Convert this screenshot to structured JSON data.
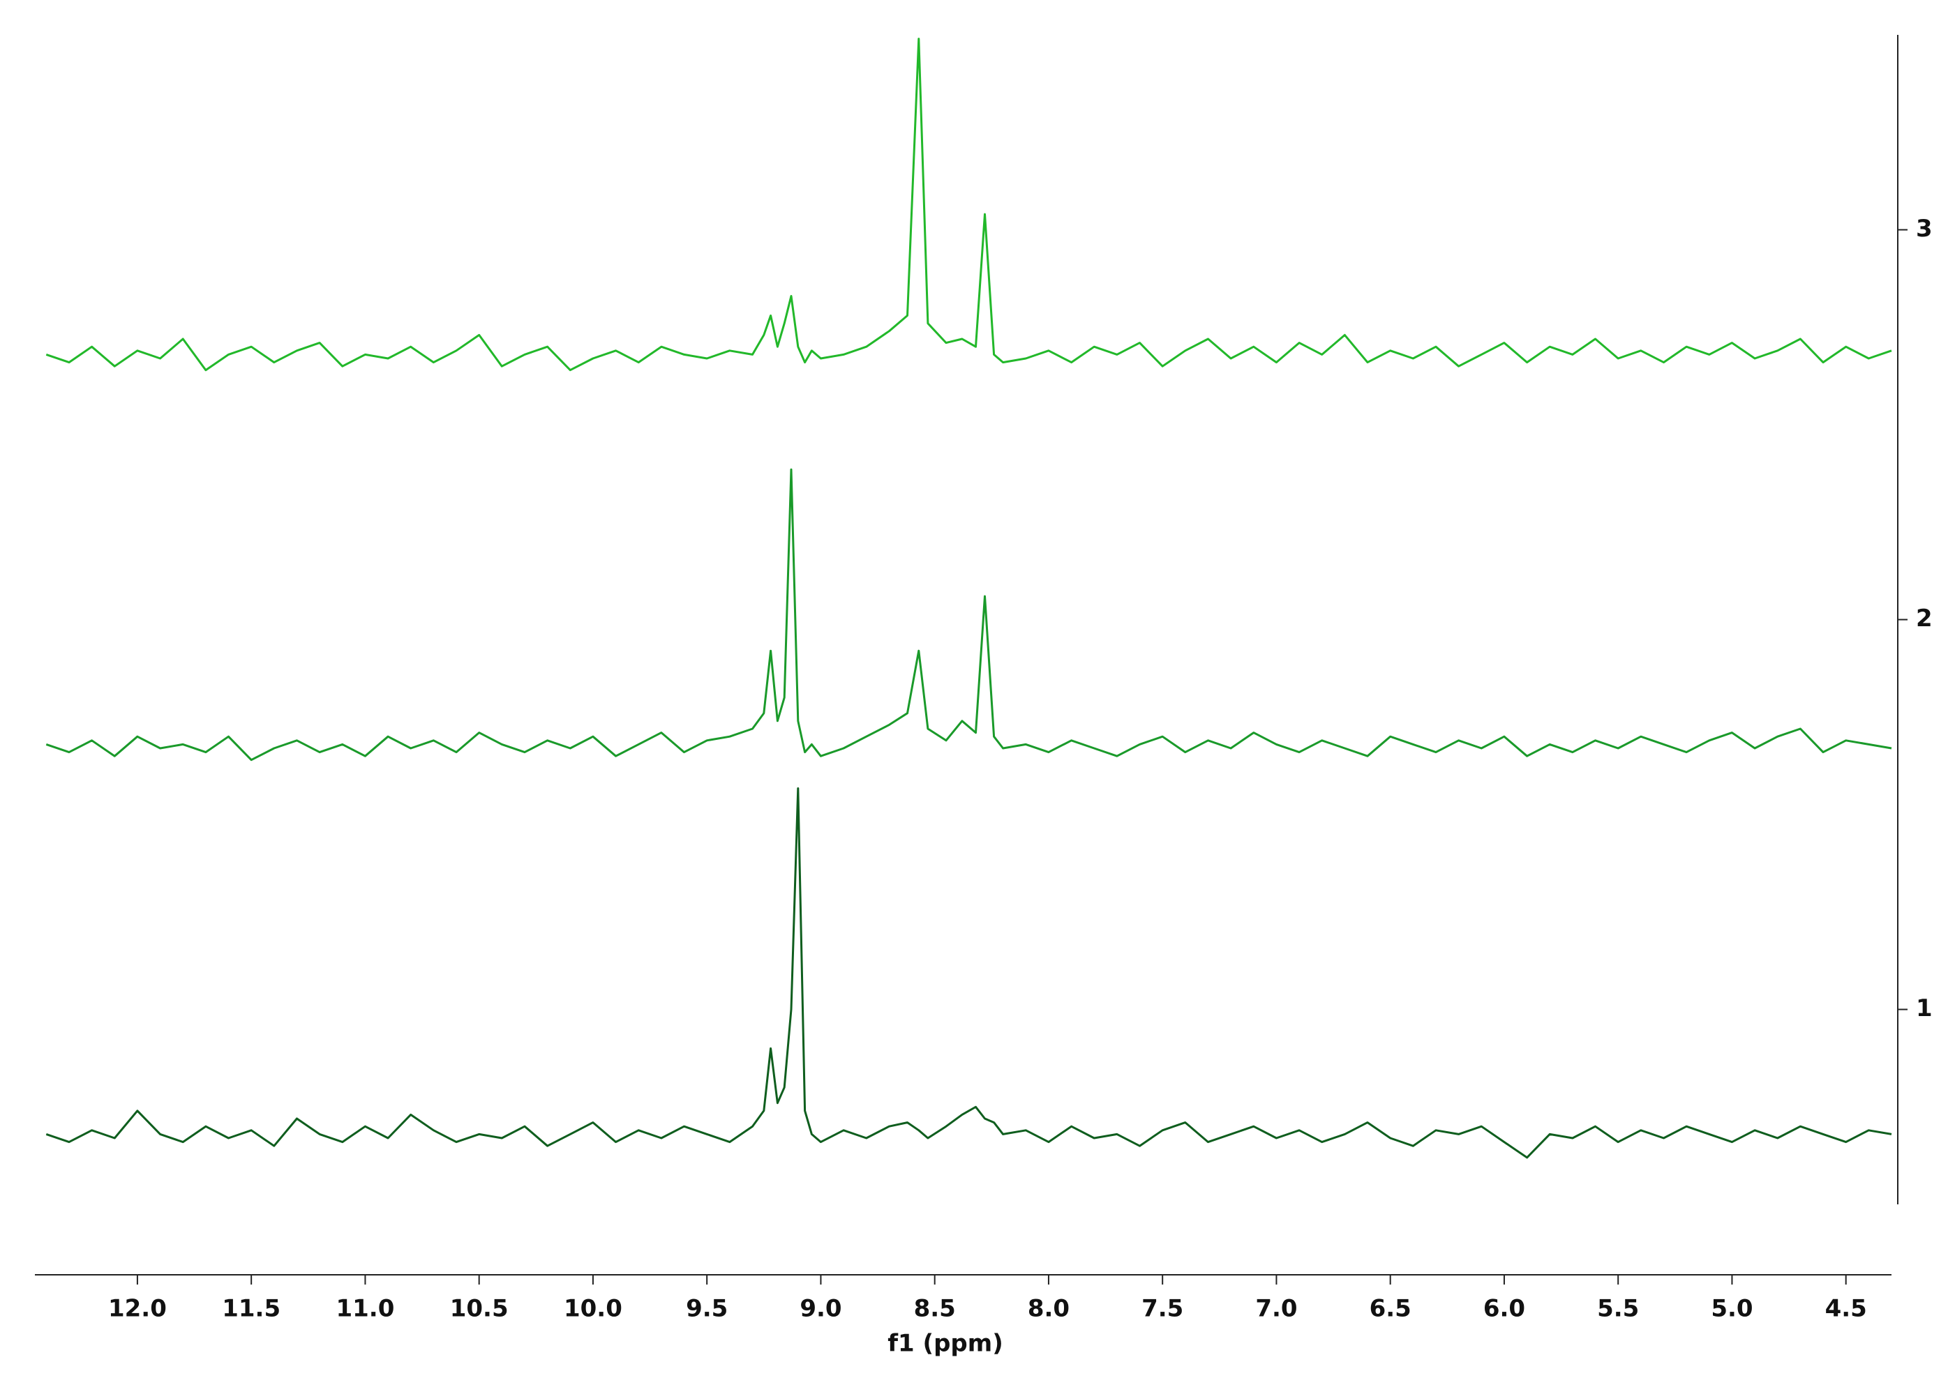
{
  "chart_data": {
    "type": "line",
    "xlabel": "f1 (ppm)",
    "x": [
      12.4,
      12.3,
      12.2,
      12.1,
      12,
      11.9,
      11.8,
      11.7,
      11.6,
      11.5,
      11.4,
      11.3,
      11.2,
      11.1,
      11,
      10.9,
      10.8,
      10.7,
      10.6,
      10.5,
      10.4,
      10.3,
      10.2,
      10.1,
      10,
      9.9,
      9.8,
      9.7,
      9.6,
      9.5,
      9.4,
      9.3,
      9.25,
      9.22,
      9.19,
      9.16,
      9.13,
      9.1,
      9.07,
      9.04,
      9.0,
      8.9,
      8.8,
      8.7,
      8.62,
      8.57,
      8.53,
      8.45,
      8.38,
      8.32,
      8.28,
      8.24,
      8.2,
      8.1,
      8,
      7.9,
      7.8,
      7.7,
      7.6,
      7.5,
      7.4,
      7.3,
      7.2,
      7.1,
      7,
      6.9,
      6.8,
      6.7,
      6.6,
      6.5,
      6.4,
      6.3,
      6.2,
      6.1,
      6,
      5.9,
      5.8,
      5.7,
      5.6,
      5.5,
      5.4,
      5.3,
      5.2,
      5.1,
      5,
      4.9,
      4.8,
      4.7,
      4.6,
      4.5,
      4.4,
      4.3
    ],
    "series": [
      {
        "color": "#22b82a",
        "values": [
          2.68,
          2.66,
          2.7,
          2.65,
          2.69,
          2.67,
          2.72,
          2.64,
          2.68,
          2.7,
          2.66,
          2.69,
          2.71,
          2.65,
          2.68,
          2.67,
          2.7,
          2.66,
          2.69,
          2.73,
          2.65,
          2.68,
          2.7,
          2.64,
          2.67,
          2.69,
          2.66,
          2.7,
          2.68,
          2.67,
          2.69,
          2.68,
          2.73,
          2.78,
          2.7,
          2.76,
          2.83,
          2.7,
          2.66,
          2.69,
          2.67,
          2.68,
          2.7,
          2.74,
          2.78,
          3.49,
          2.76,
          2.71,
          2.72,
          2.7,
          3.04,
          2.68,
          2.66,
          2.67,
          2.69,
          2.66,
          2.7,
          2.68,
          2.71,
          2.65,
          2.69,
          2.72,
          2.67,
          2.7,
          2.66,
          2.71,
          2.68,
          2.73,
          2.66,
          2.69,
          2.67,
          2.7,
          2.65,
          2.68,
          2.71,
          2.66,
          2.7,
          2.68,
          2.72,
          2.67,
          2.69,
          2.66,
          2.7,
          2.68,
          2.71,
          2.67,
          2.69,
          2.72,
          2.66,
          2.7,
          2.67,
          2.69
        ]
      },
      {
        "color": "#1a9a2a",
        "values": [
          1.68,
          1.66,
          1.69,
          1.65,
          1.7,
          1.67,
          1.68,
          1.66,
          1.7,
          1.64,
          1.67,
          1.69,
          1.66,
          1.68,
          1.65,
          1.7,
          1.67,
          1.69,
          1.66,
          1.71,
          1.68,
          1.66,
          1.69,
          1.67,
          1.7,
          1.65,
          1.68,
          1.71,
          1.66,
          1.69,
          1.7,
          1.72,
          1.76,
          1.92,
          1.74,
          1.8,
          2.385,
          1.74,
          1.66,
          1.68,
          1.65,
          1.67,
          1.7,
          1.73,
          1.76,
          1.92,
          1.72,
          1.69,
          1.74,
          1.71,
          2.06,
          1.7,
          1.67,
          1.68,
          1.66,
          1.69,
          1.67,
          1.65,
          1.68,
          1.7,
          1.66,
          1.69,
          1.67,
          1.71,
          1.68,
          1.66,
          1.69,
          1.67,
          1.65,
          1.7,
          1.68,
          1.66,
          1.69,
          1.67,
          1.7,
          1.65,
          1.68,
          1.66,
          1.69,
          1.67,
          1.7,
          1.68,
          1.66,
          1.69,
          1.71,
          1.67,
          1.7,
          1.72,
          1.66,
          1.69,
          1.68,
          1.67
        ]
      },
      {
        "color": "#0f5e1e",
        "values": [
          0.68,
          0.66,
          0.69,
          0.67,
          0.74,
          0.68,
          0.66,
          0.7,
          0.67,
          0.69,
          0.65,
          0.72,
          0.68,
          0.66,
          0.7,
          0.67,
          0.73,
          0.69,
          0.66,
          0.68,
          0.67,
          0.7,
          0.65,
          0.68,
          0.71,
          0.66,
          0.69,
          0.67,
          0.7,
          0.68,
          0.66,
          0.7,
          0.74,
          0.9,
          0.76,
          0.8,
          1.0,
          1.567,
          0.74,
          0.68,
          0.66,
          0.69,
          0.67,
          0.7,
          0.71,
          0.69,
          0.67,
          0.7,
          0.73,
          0.75,
          0.72,
          0.71,
          0.68,
          0.69,
          0.66,
          0.7,
          0.67,
          0.68,
          0.65,
          0.69,
          0.71,
          0.66,
          0.68,
          0.7,
          0.67,
          0.69,
          0.66,
          0.68,
          0.71,
          0.67,
          0.65,
          0.69,
          0.68,
          0.7,
          0.66,
          0.62,
          0.68,
          0.67,
          0.7,
          0.66,
          0.69,
          0.67,
          0.7,
          0.68,
          0.66,
          0.69,
          0.67,
          0.7,
          0.68,
          0.66,
          0.69,
          0.68
        ]
      }
    ],
    "xlim": [
      12.45,
      4.3
    ],
    "xticks": [
      {
        "value": 12,
        "label": "12.0"
      },
      11.5,
      {
        "value": 11,
        "label": "11.0"
      },
      10.5,
      {
        "value": 10,
        "label": "10.0"
      },
      9.5,
      {
        "value": 9,
        "label": "9.0"
      },
      8.5,
      {
        "value": 8,
        "label": "8.0"
      },
      7.5,
      {
        "value": 7,
        "label": "7.0"
      },
      6.5,
      {
        "value": 6,
        "label": "6.0"
      },
      5.5,
      {
        "value": 5,
        "label": "5.0"
      },
      4.5
    ],
    "ylim": [
      0.5,
      3.5
    ],
    "yticks": [
      1,
      2,
      3
    ]
  }
}
